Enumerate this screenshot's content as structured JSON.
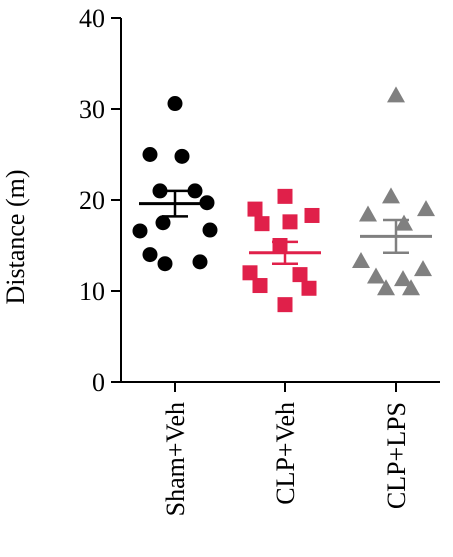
{
  "chart_data": {
    "type": "scatter",
    "title": "",
    "xlabel": "",
    "ylabel": "Distance (m)",
    "ylim": [
      0,
      40
    ],
    "yticks": [
      0,
      10,
      20,
      30,
      40
    ],
    "grid": false,
    "categories": [
      "Sham+Veh",
      "CLP+Veh",
      "CLP+LPS"
    ],
    "series": [
      {
        "category": "Sham+Veh",
        "marker": "circle",
        "color": "#000000",
        "values": [
          30.6,
          25.0,
          24.8,
          21.0,
          21.0,
          19.7,
          17.5,
          16.7,
          16.6,
          14.0,
          13.2,
          13.0
        ],
        "mean": 19.6,
        "sem": 1.4
      },
      {
        "category": "CLP+Veh",
        "marker": "square",
        "color": "#e0204a",
        "values": [
          20.4,
          19.0,
          18.3,
          17.6,
          17.4,
          15.0,
          12.0,
          11.8,
          10.6,
          10.3,
          8.5
        ],
        "mean": 14.2,
        "sem": 1.2
      },
      {
        "category": "CLP+LPS",
        "marker": "triangle",
        "color": "#808080",
        "values": [
          31.5,
          20.4,
          19.0,
          18.4,
          17.4,
          13.3,
          12.4,
          11.6,
          11.3,
          10.3,
          10.3
        ],
        "mean": 16.0,
        "sem": 1.8
      }
    ]
  }
}
